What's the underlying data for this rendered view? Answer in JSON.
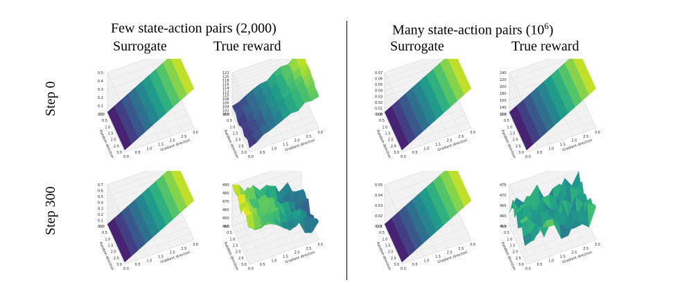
{
  "headings": {
    "few_title": "Few state-action pairs (2,000)",
    "many_title_prefix": "Many state-action pairs (10",
    "many_title_sup": "6",
    "many_title_suffix": ")",
    "col_surrogate": "Surrogate",
    "col_true_reward": "True reward",
    "row_step0": "Step 0",
    "row_step300": "Step 300"
  },
  "chart_data": [
    {
      "id": "few-step0-surrogate",
      "type": "surface3d",
      "xlabel": "Gradient direction",
      "ylabel": "Random direction",
      "x_ticks": [
        "0.0",
        "0.5",
        "1.0",
        "1.5",
        "2.0",
        "2.5",
        "3.0"
      ],
      "y_ticks": [
        "0.0",
        "0.5",
        "1.0",
        "1.5",
        "2.0",
        "2.5",
        "3.0"
      ],
      "z_ticks": [
        "0.0",
        "0.1",
        "0.2",
        "0.3",
        "0.4",
        "0.5"
      ],
      "zlim": [
        0,
        0.5
      ],
      "colormap": "viridis",
      "surface": "plane"
    },
    {
      "id": "few-step0-true",
      "type": "surface3d",
      "xlabel": "Gradient direction",
      "ylabel": "Random direction",
      "x_ticks": [
        "0.0",
        "0.5",
        "1.0",
        "1.5",
        "2.0",
        "2.5",
        "3.0"
      ],
      "y_ticks": [
        "0.0",
        "0.5",
        "1.0",
        "1.5",
        "2.0",
        "2.5",
        "3.0"
      ],
      "z_ticks": [
        "100",
        "102",
        "104",
        "106",
        "108",
        "110",
        "112",
        "114",
        "116",
        "118",
        "120",
        "122"
      ],
      "zlim": [
        100,
        122
      ],
      "colormap": "viridis",
      "surface": "noisy-ramp"
    },
    {
      "id": "few-step300-surrogate",
      "type": "surface3d",
      "xlabel": "Gradient direction",
      "ylabel": "Random direction",
      "x_ticks": [
        "0.0",
        "0.5",
        "1.0",
        "1.5",
        "2.0",
        "2.5",
        "3.0"
      ],
      "y_ticks": [
        "0.0",
        "0.5",
        "1.0",
        "1.5",
        "2.0",
        "2.5",
        "3.0"
      ],
      "z_ticks": [
        "0.0",
        "0.1",
        "0.2",
        "0.3",
        "0.4",
        "0.5",
        "0.6",
        "0.7"
      ],
      "zlim": [
        0,
        0.7
      ],
      "colormap": "viridis",
      "surface": "plane"
    },
    {
      "id": "few-step300-true",
      "type": "surface3d",
      "xlabel": "Gradient direction",
      "ylabel": "Random direction",
      "x_ticks": [
        "0.0",
        "0.5",
        "1.0",
        "1.5",
        "2.0",
        "2.5",
        "3.0"
      ],
      "y_ticks": [
        "0.0",
        "0.5",
        "1.0",
        "1.5",
        "2.0",
        "2.5",
        "3.0"
      ],
      "z_ticks": [
        "440",
        "450",
        "460",
        "470",
        "480",
        "490"
      ],
      "zlim": [
        440,
        490
      ],
      "colormap": "viridis",
      "surface": "noisy-descending"
    },
    {
      "id": "many-step0-surrogate",
      "type": "surface3d",
      "xlabel": "Gradient direction",
      "ylabel": "Random direction",
      "x_ticks": [
        "0.0",
        "0.5",
        "1.0",
        "1.5",
        "2.0",
        "2.5",
        "3.0"
      ],
      "y_ticks": [
        "0.0",
        "0.5",
        "1.0",
        "1.5",
        "2.0",
        "2.5",
        "3.0"
      ],
      "z_ticks": [
        "0.00",
        "0.01",
        "0.02",
        "0.03",
        "0.04",
        "0.05",
        "0.06",
        "0.07"
      ],
      "zlim": [
        0,
        0.07
      ],
      "colormap": "viridis",
      "surface": "plane"
    },
    {
      "id": "many-step0-true",
      "type": "surface3d",
      "xlabel": "Gradient direction",
      "ylabel": "Random direction",
      "x_ticks": [
        "0.0",
        "0.5",
        "1.0",
        "1.5",
        "2.0",
        "2.5",
        "3.0"
      ],
      "y_ticks": [
        "0.0",
        "0.5",
        "1.0",
        "1.5",
        "2.0",
        "2.5",
        "3.0"
      ],
      "z_ticks": [
        "120",
        "140",
        "160",
        "180",
        "200",
        "220",
        "240"
      ],
      "zlim": [
        120,
        240
      ],
      "colormap": "viridis",
      "surface": "plane"
    },
    {
      "id": "many-step300-surrogate",
      "type": "surface3d",
      "xlabel": "Gradient direction",
      "ylabel": "Random direction",
      "x_ticks": [
        "0.0",
        "0.5",
        "1.0",
        "1.5",
        "2.0",
        "2.5",
        "3.0"
      ],
      "y_ticks": [
        "0.0",
        "0.5",
        "1.0",
        "1.5",
        "2.0",
        "2.5",
        "3.0"
      ],
      "z_ticks": [
        "0.01",
        "0.02",
        "0.03",
        "0.04",
        "0.05"
      ],
      "zlim": [
        0.01,
        0.05
      ],
      "colormap": "viridis",
      "surface": "plane"
    },
    {
      "id": "many-step300-true",
      "type": "surface3d",
      "xlabel": "Gradient direction",
      "ylabel": "Random direction",
      "x_ticks": [
        "0.0",
        "0.5",
        "1.0",
        "1.5",
        "2.0",
        "2.5",
        "3.0"
      ],
      "y_ticks": [
        "0.0",
        "0.5",
        "1.0",
        "1.5",
        "2.0",
        "2.5",
        "3.0"
      ],
      "z_ticks": [
        "455",
        "460",
        "465",
        "470",
        "475"
      ],
      "zlim": [
        455,
        475
      ],
      "colormap": "viridis",
      "surface": "noisy-flat"
    }
  ]
}
